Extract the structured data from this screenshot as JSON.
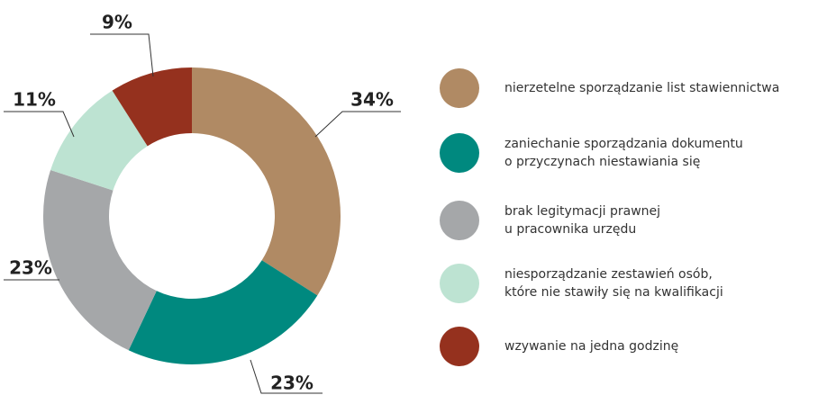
{
  "chart_data": {
    "type": "donut",
    "categories": [
      "nierzetelne sporządzanie list stawiennictwa",
      "zaniechanie sporządzania dokumentu\no przyczynach niestawiania się",
      "brak legitymacji prawnej\nu pracownika urzędu",
      "niesporządzanie zestawień osób,\nktóre nie stawiły się na kwalifikacji",
      "wzywanie na jedna godzinę"
    ],
    "values": [
      34,
      23,
      23,
      11,
      9
    ],
    "value_labels": [
      "34%",
      "23%",
      "23%",
      "11%",
      "9%"
    ],
    "colors": [
      "#b08a64",
      "#00897f",
      "#a5a7a9",
      "#bde3d2",
      "#95311e"
    ]
  }
}
